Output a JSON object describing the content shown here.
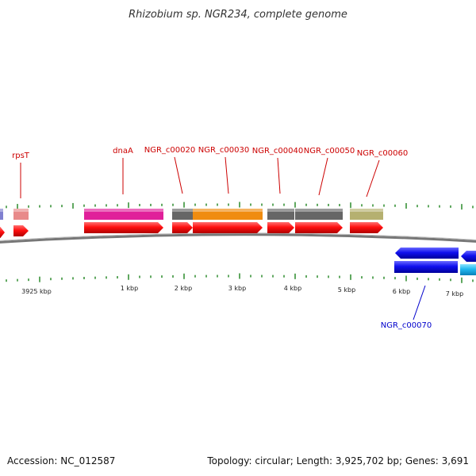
{
  "title": "Rhizobium sp. NGR234, complete genome",
  "footer": {
    "accession": "Accession: NC_012587",
    "summary": "Topology: circular; Length: 3,925,702 bp; Genes: 3,691"
  },
  "colors": {
    "label_forward": "#cc0000",
    "label_reverse": "#0000cc",
    "backbone": "#777777",
    "tick": "#2a8a2a"
  },
  "kbp_labels": [
    "3925 kbp",
    "1 kbp",
    "2 kbp",
    "3 kbp",
    "4 kbp",
    "5 kbp",
    "6 kbp",
    "7 kbp"
  ],
  "genes": [
    {
      "name": "rpsT",
      "strand": "forward",
      "color": "#e88a8a"
    },
    {
      "name": "dnaA",
      "strand": "forward",
      "color": "#e0209a"
    },
    {
      "name": "NGR_c00020",
      "strand": "forward",
      "color": "#666666"
    },
    {
      "name": "NGR_c00030",
      "strand": "forward",
      "color": "#f08c10"
    },
    {
      "name": "NGR_c00040",
      "strand": "forward",
      "color": "#666666"
    },
    {
      "name": "NGR_c00050",
      "strand": "forward",
      "color": "#666666"
    },
    {
      "name": "NGR_c00060",
      "strand": "forward",
      "color": "#b5b070"
    },
    {
      "name": "NGR_c00070",
      "strand": "reverse",
      "color": "#0000dd"
    }
  ]
}
